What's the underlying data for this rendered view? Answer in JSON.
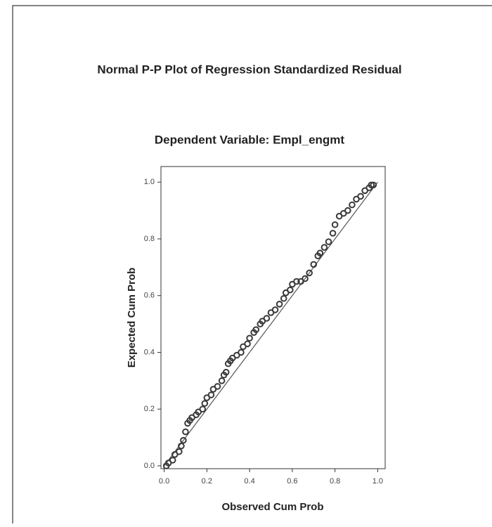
{
  "chart_data": {
    "type": "scatter",
    "title": "Normal P-P Plot of Regression Standardized Residual",
    "subtitle": "Dependent Variable: Empl_engmt",
    "x_label": "Observed Cum Prob",
    "y_label": "Expected Cum Prob",
    "color": "#3a3a3a",
    "xlim": [
      -0.015,
      1.035
    ],
    "ylim": [
      -0.01,
      1.055
    ],
    "xticks": [
      {
        "value": 0,
        "label": "0.0"
      },
      0.2,
      0.4,
      0.6,
      0.8,
      {
        "value": 1,
        "label": "1.0"
      }
    ],
    "yticks": [
      {
        "value": 0,
        "label": "0.0"
      },
      0.2,
      0.4,
      0.6,
      0.8,
      {
        "value": 1,
        "label": "1.0"
      }
    ],
    "reference_line": {
      "x": [
        0,
        1
      ],
      "y": [
        0,
        1
      ]
    },
    "x": [
      0.01,
      0.02,
      0.04,
      0.05,
      0.07,
      0.08,
      0.09,
      0.1,
      0.11,
      0.12,
      0.13,
      0.15,
      0.16,
      0.18,
      0.19,
      0.2,
      0.22,
      0.23,
      0.25,
      0.27,
      0.28,
      0.29,
      0.3,
      0.31,
      0.32,
      0.34,
      0.36,
      0.37,
      0.39,
      0.4,
      0.42,
      0.43,
      0.45,
      0.46,
      0.48,
      0.5,
      0.52,
      0.54,
      0.56,
      0.57,
      0.59,
      0.6,
      0.62,
      0.64,
      0.66,
      0.68,
      0.7,
      0.72,
      0.73,
      0.75,
      0.77,
      0.79,
      0.8,
      0.82,
      0.84,
      0.86,
      0.88,
      0.9,
      0.92,
      0.94,
      0.96,
      0.97,
      0.98
    ],
    "values": [
      0.0,
      0.01,
      0.02,
      0.04,
      0.05,
      0.07,
      0.09,
      0.12,
      0.15,
      0.16,
      0.17,
      0.18,
      0.19,
      0.2,
      0.22,
      0.24,
      0.25,
      0.27,
      0.28,
      0.3,
      0.32,
      0.33,
      0.36,
      0.37,
      0.38,
      0.39,
      0.4,
      0.42,
      0.43,
      0.45,
      0.47,
      0.48,
      0.5,
      0.51,
      0.52,
      0.54,
      0.55,
      0.57,
      0.59,
      0.61,
      0.62,
      0.64,
      0.65,
      0.65,
      0.66,
      0.68,
      0.71,
      0.74,
      0.75,
      0.77,
      0.79,
      0.82,
      0.85,
      0.88,
      0.89,
      0.9,
      0.92,
      0.94,
      0.95,
      0.97,
      0.98,
      0.99,
      0.99
    ]
  }
}
